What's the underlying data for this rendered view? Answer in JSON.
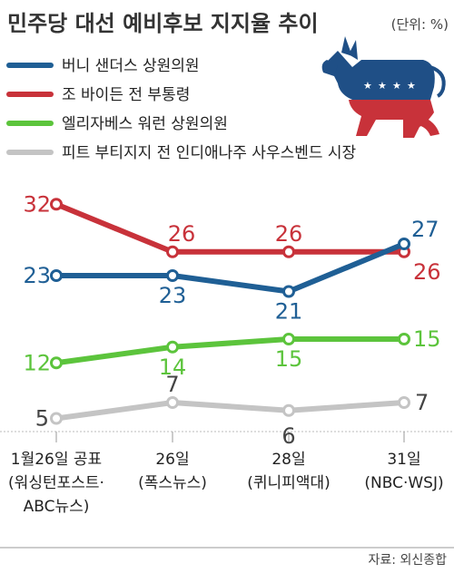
{
  "chart_data": {
    "type": "line",
    "title": "민주당 대선 예비후보 지지율 추이",
    "unit_note": "(단위: %)",
    "categories": [
      [
        "1월26일 공표",
        "(워싱턴포스트·",
        "ABC뉴스)"
      ],
      [
        "26일",
        "(폭스뉴스)"
      ],
      [
        "28일",
        "(퀴니피액대)"
      ],
      [
        "31일",
        "(NBC·WSJ)"
      ]
    ],
    "series": [
      {
        "name": "버니 샌더스 상원의원",
        "color": "#1f5f95",
        "values": [
          23,
          23,
          21,
          27
        ]
      },
      {
        "name": "조 바이든 전 부통령",
        "color": "#c8323a",
        "values": [
          32,
          26,
          26,
          26
        ]
      },
      {
        "name": "엘리자베스 워런 상원의원",
        "color": "#5cc43c",
        "values": [
          12,
          14,
          15,
          15
        ]
      },
      {
        "name": "피트 부티지지 전 인디애나주 사우스벤드 시장",
        "color": "#c4c4c4",
        "values": [
          5,
          7,
          6,
          7
        ]
      }
    ],
    "source": "자료: 외신종합",
    "legend_position": "top-left",
    "grid": false,
    "decoration_icon": "donkey-icon"
  }
}
